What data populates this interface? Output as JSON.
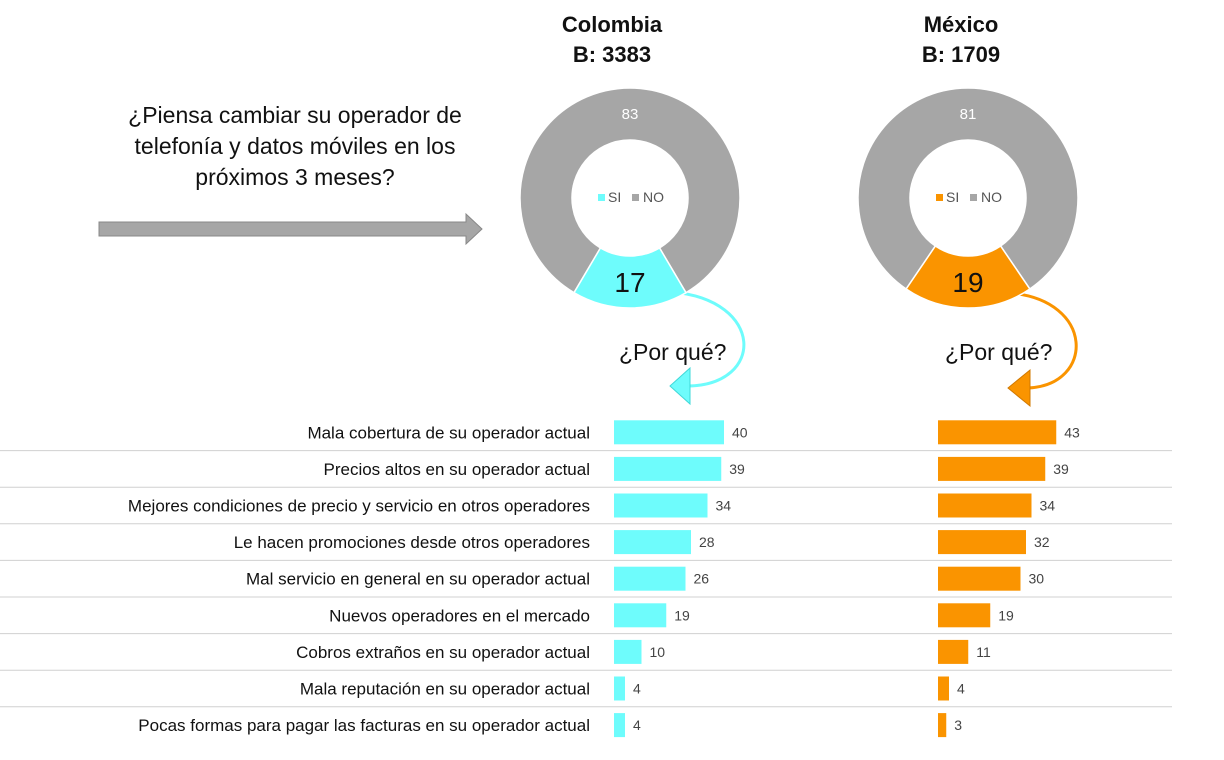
{
  "question": "¿Piensa cambiar su operador de telefonía y datos móviles en los próximos 3 meses?",
  "why_label": "¿Por qué?",
  "colors": {
    "si_colombia": "#6EFCFC",
    "si_mexico": "#FA9400",
    "no": "#A6A6A6"
  },
  "countries": [
    {
      "name": "Colombia",
      "base": "B: 3383"
    },
    {
      "name": "México",
      "base": "B: 1709"
    }
  ],
  "chart_data": [
    {
      "type": "pie",
      "variant": "donut",
      "title": "Colombia",
      "subtitle": "B: 3383",
      "categories": [
        "SI",
        "NO"
      ],
      "values": [
        17,
        83
      ],
      "colors": [
        "#6EFCFC",
        "#A6A6A6"
      ],
      "legend": "center"
    },
    {
      "type": "pie",
      "variant": "donut",
      "title": "México",
      "subtitle": "B: 1709",
      "categories": [
        "SI",
        "NO"
      ],
      "values": [
        19,
        81
      ],
      "colors": [
        "#FA9400",
        "#A6A6A6"
      ],
      "legend": "center"
    },
    {
      "type": "bar",
      "orientation": "horizontal",
      "categories": [
        "Mala cobertura de su operador actual",
        "Precios altos en su operador actual",
        "Mejores condiciones de precio y servicio en otros operadores",
        "Le hacen promociones desde otros operadores",
        "Mal servicio en general en su operador actual",
        "Nuevos operadores en el mercado",
        "Cobros extraños en su operador actual",
        "Mala reputación en su operador actual",
        "Pocas formas para pagar las facturas en su operador actual"
      ],
      "series": [
        {
          "name": "Colombia",
          "color": "#6EFCFC",
          "values": [
            40,
            39,
            34,
            28,
            26,
            19,
            10,
            4,
            4
          ]
        },
        {
          "name": "México",
          "color": "#FA9400",
          "values": [
            43,
            39,
            34,
            32,
            30,
            19,
            11,
            4,
            3
          ]
        }
      ],
      "grid": false
    }
  ]
}
